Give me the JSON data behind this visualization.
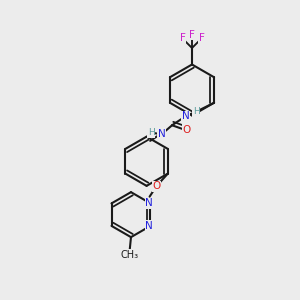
{
  "background_color": "#ececec",
  "figsize": [
    3.0,
    3.0
  ],
  "dpi": 100,
  "bond_color": "#1a1a1a",
  "bond_lw": 1.5,
  "colors": {
    "C": "#1a1a1a",
    "H": "#5a9a9a",
    "N": "#2020dd",
    "O": "#dd2020",
    "F": "#cc22cc"
  },
  "font_size": 7.5,
  "font_size_small": 6.5
}
